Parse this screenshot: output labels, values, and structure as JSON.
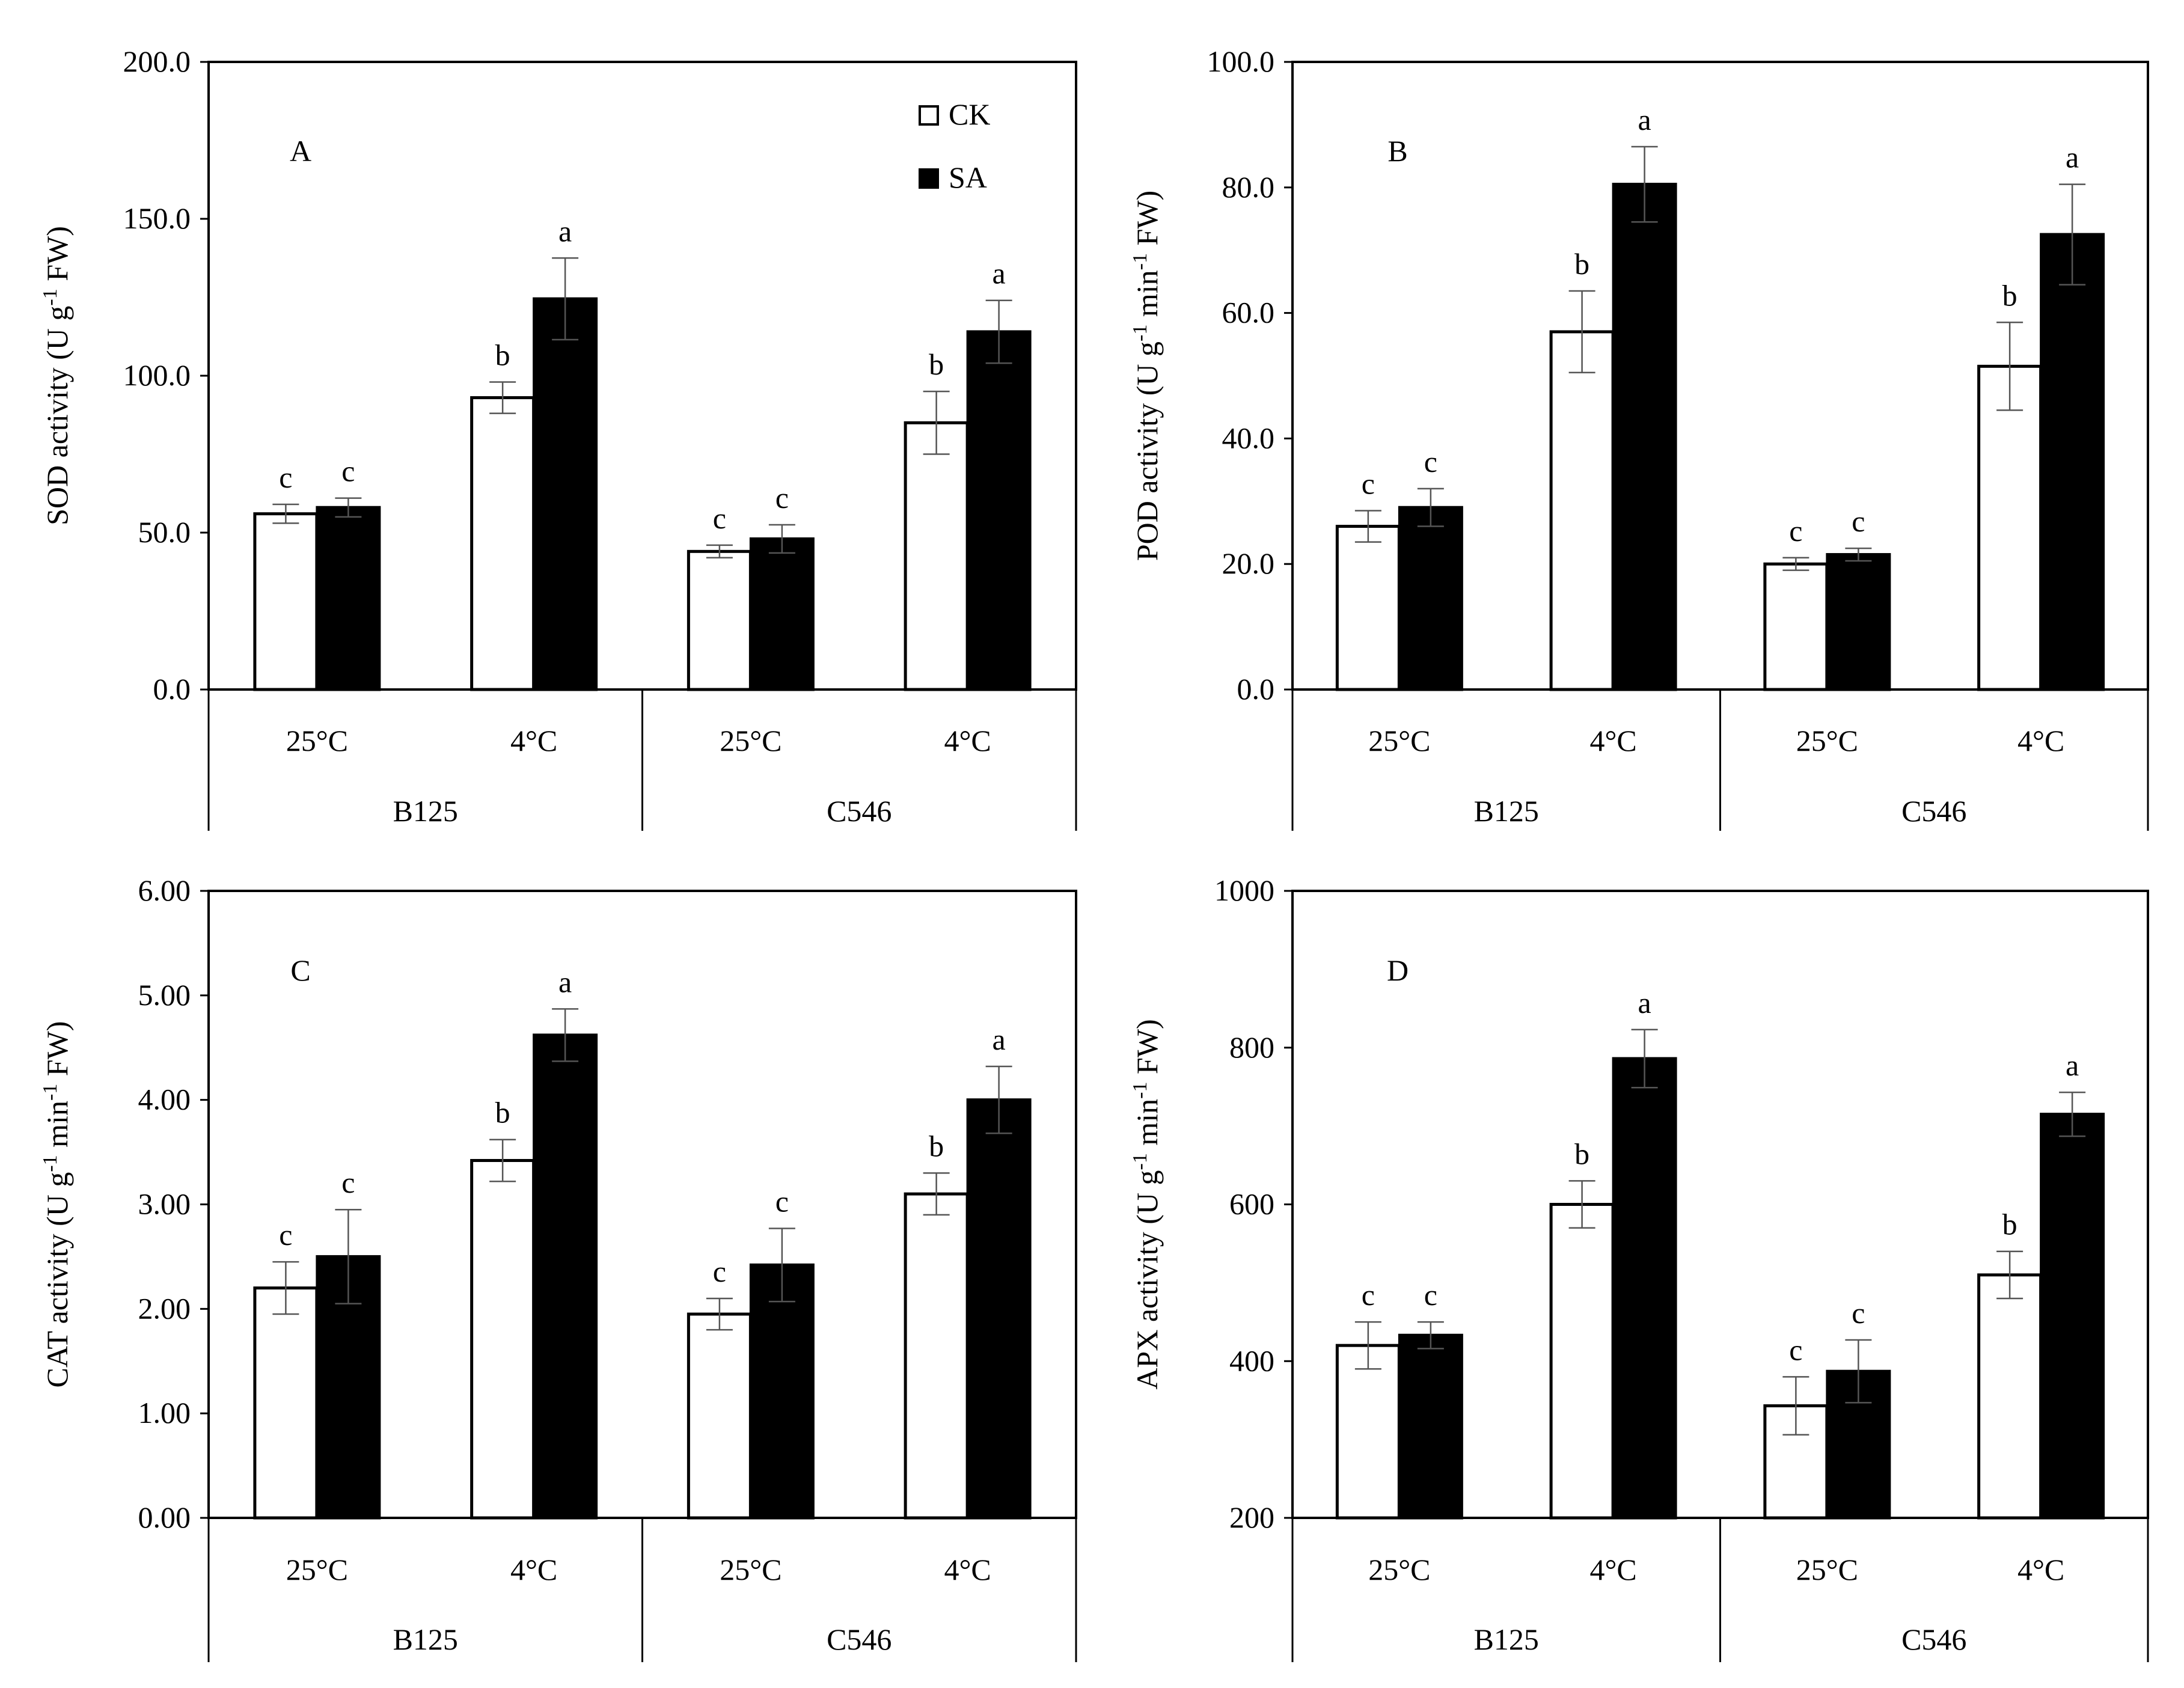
{
  "figure": {
    "legend": {
      "labels": [
        "CK",
        "SA"
      ],
      "colors": [
        "#ffffff",
        "#000000"
      ]
    }
  },
  "chart_data": [
    {
      "panel": "A",
      "type": "bar",
      "ylabel": "SOD activity (U g-1 FW)",
      "ylabel_parts": {
        "pre": "SOD activity (U g",
        "sup": "-1",
        "post": " FW)"
      },
      "ylim": [
        0,
        200
      ],
      "yticks": [
        "0.0",
        "50.0",
        "100.0",
        "150.0",
        "200.0"
      ],
      "ytick_values": [
        0,
        50,
        100,
        150,
        200
      ],
      "categories": [
        "25°C",
        "4°C",
        "25°C",
        "4°C"
      ],
      "groups": [
        "B125",
        "C546"
      ],
      "series": [
        {
          "name": "CK",
          "values": [
            56,
            93,
            44,
            85
          ],
          "errors": [
            3,
            5,
            2,
            10
          ],
          "letters": [
            "c",
            "b",
            "c",
            "b"
          ]
        },
        {
          "name": "SA",
          "values": [
            58,
            124.5,
            48,
            114
          ],
          "errors": [
            3,
            13,
            4.5,
            10
          ],
          "letters": [
            "c",
            "a",
            "c",
            "a"
          ]
        }
      ],
      "show_legend": true
    },
    {
      "panel": "B",
      "type": "bar",
      "ylabel": "POD activity (U g-1 min-1 FW)",
      "ylabel_parts": {
        "pre": "POD activity (U g",
        "sup": "-1",
        "mid": " min",
        "sup2": "-1",
        "post": " FW)"
      },
      "ylim": [
        0,
        100
      ],
      "yticks": [
        "0.0",
        "20.0",
        "40.0",
        "60.0",
        "80.0",
        "100.0"
      ],
      "ytick_values": [
        0,
        20,
        40,
        60,
        80,
        100
      ],
      "categories": [
        "25°C",
        "4°C",
        "25°C",
        "4°C"
      ],
      "groups": [
        "B125",
        "C546"
      ],
      "series": [
        {
          "name": "CK",
          "values": [
            26,
            57,
            20,
            51.5
          ],
          "errors": [
            2.5,
            6.5,
            1,
            7
          ],
          "letters": [
            "c",
            "b",
            "c",
            "b"
          ]
        },
        {
          "name": "SA",
          "values": [
            29,
            80.5,
            21.5,
            72.5
          ],
          "errors": [
            3,
            6,
            1,
            8
          ],
          "letters": [
            "c",
            "a",
            "c",
            "a"
          ]
        }
      ],
      "show_legend": false
    },
    {
      "panel": "C",
      "type": "bar",
      "ylabel": "CAT activity (U g-1 min-1 FW)",
      "ylabel_parts": {
        "pre": "CAT activity (U g",
        "sup": "-1",
        "mid": " min",
        "sup2": "-1",
        "post": " FW)"
      },
      "ylim": [
        0,
        6
      ],
      "yticks": [
        "0.00",
        "1.00",
        "2.00",
        "3.00",
        "4.00",
        "5.00",
        "6.00"
      ],
      "ytick_values": [
        0,
        1,
        2,
        3,
        4,
        5,
        6
      ],
      "categories": [
        "25°C",
        "4°C",
        "25°C",
        "4°C"
      ],
      "groups": [
        "B125",
        "C546"
      ],
      "series": [
        {
          "name": "CK",
          "values": [
            2.2,
            3.42,
            1.95,
            3.1
          ],
          "errors": [
            0.25,
            0.2,
            0.15,
            0.2
          ],
          "letters": [
            "c",
            "b",
            "c",
            "b"
          ]
        },
        {
          "name": "SA",
          "values": [
            2.5,
            4.62,
            2.42,
            4.0
          ],
          "errors": [
            0.45,
            0.25,
            0.35,
            0.32
          ],
          "letters": [
            "c",
            "a",
            "c",
            "a"
          ]
        }
      ],
      "show_legend": false
    },
    {
      "panel": "D",
      "type": "bar",
      "ylabel": "APX activity (U g-1 min-1 FW)",
      "ylabel_parts": {
        "pre": "APX  activity (U g",
        "sup": "-1",
        "mid": " min",
        "sup2": "-1",
        "post": " FW)"
      },
      "ylim": [
        200,
        1000
      ],
      "yticks": [
        "200",
        "400",
        "600",
        "800",
        "1000"
      ],
      "ytick_values": [
        200,
        400,
        600,
        800,
        1000
      ],
      "categories": [
        "25°C",
        "4°C",
        "25°C",
        "4°C"
      ],
      "groups": [
        "B125",
        "C546"
      ],
      "series": [
        {
          "name": "CK",
          "values": [
            420,
            600,
            343,
            510
          ],
          "errors": [
            30,
            30,
            37,
            30
          ],
          "letters": [
            "c",
            "b",
            "c",
            "b"
          ]
        },
        {
          "name": "SA",
          "values": [
            433,
            786,
            387,
            715
          ],
          "errors": [
            17,
            37,
            40,
            28
          ],
          "letters": [
            "c",
            "a",
            "c",
            "a"
          ]
        }
      ],
      "show_legend": false
    }
  ]
}
